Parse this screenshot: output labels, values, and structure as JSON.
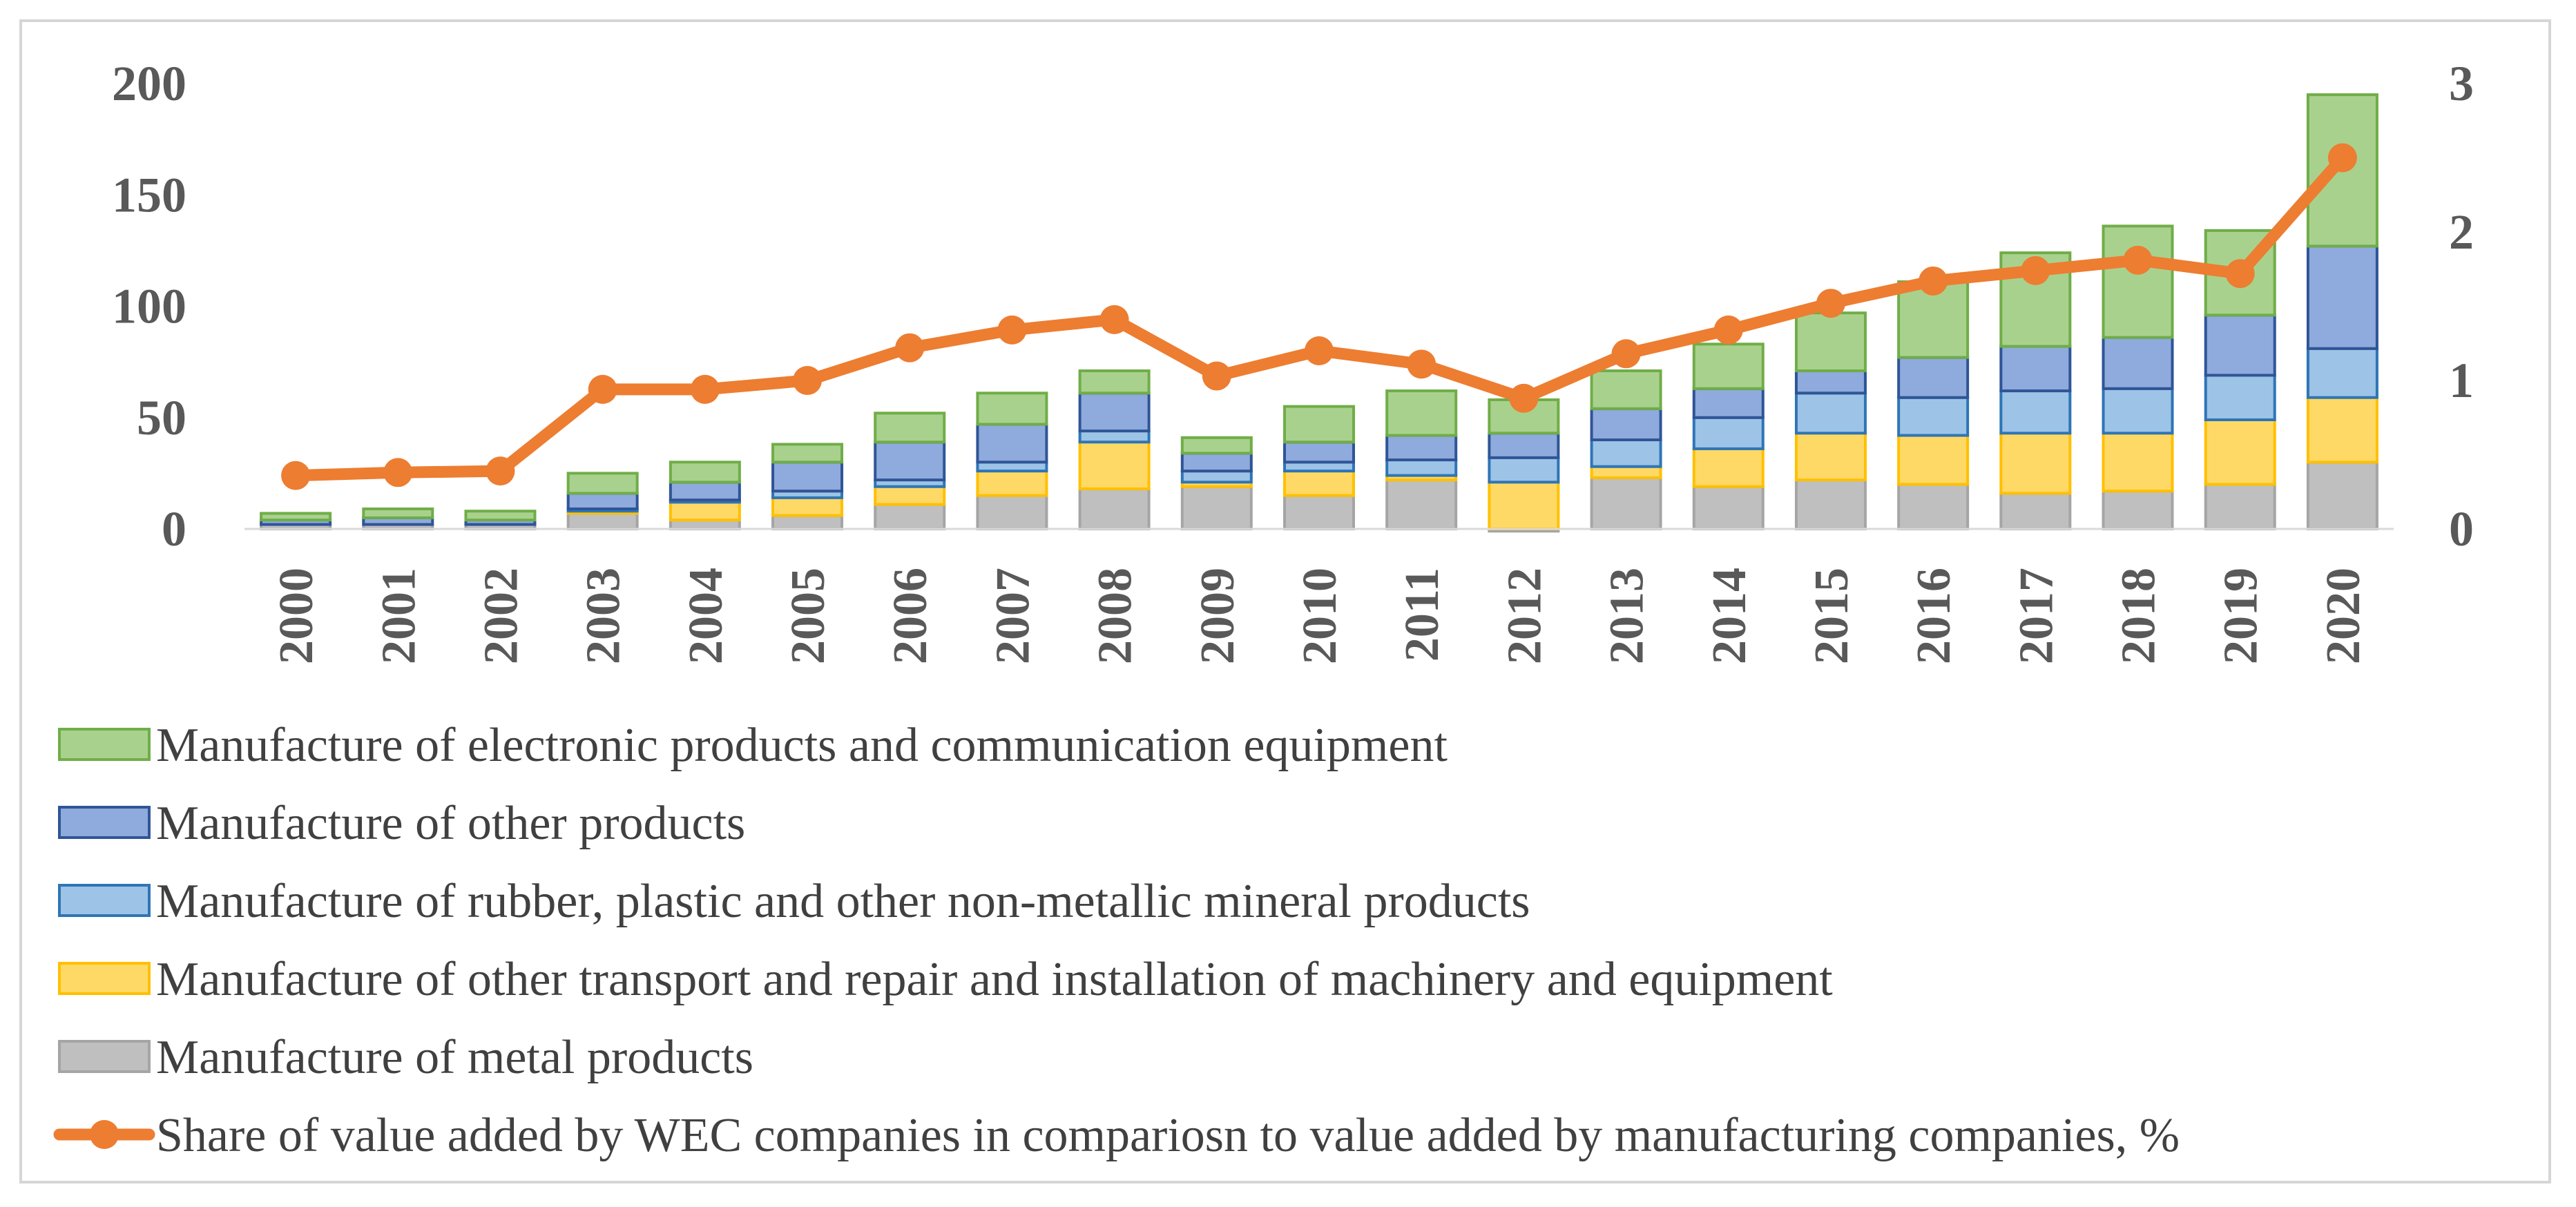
{
  "chart_data": {
    "type": "bar",
    "stacked": true,
    "categories": [
      "2000",
      "2001",
      "2002",
      "2003",
      "2004",
      "2005",
      "2006",
      "2007",
      "2008",
      "2009",
      "2010",
      "2011",
      "2012",
      "2013",
      "2014",
      "2015",
      "2016",
      "2017",
      "2018",
      "2019",
      "2020"
    ],
    "series": [
      {
        "name": "Manufacture of metal products",
        "color": "#bfbfbf",
        "edge": "#a5a5a5",
        "values": [
          2,
          2,
          2,
          7,
          4,
          6,
          11,
          15,
          18,
          19,
          15,
          22,
          -1,
          23,
          19,
          22,
          20,
          16,
          17,
          20,
          30
        ]
      },
      {
        "name": "Manufacture of other transport  and repair and installation of machinery and equipment",
        "color": "#ffd966",
        "edge": "#ffc000",
        "values": [
          0,
          0,
          0,
          1,
          8,
          8,
          8,
          11,
          21,
          2,
          11,
          2,
          21,
          5,
          17,
          21,
          22,
          27,
          26,
          29,
          29
        ]
      },
      {
        "name": "Manufacture of rubber, plastic and other non-metallic mineral products",
        "color": "#9dc3e6",
        "edge": "#2e75b6",
        "values": [
          0,
          0,
          0,
          1,
          1,
          3,
          3,
          4,
          5,
          5,
          4,
          7,
          11,
          12,
          14,
          18,
          17,
          19,
          20,
          20,
          22
        ]
      },
      {
        "name": "Manufacture of other products",
        "color": "#8faadc",
        "edge": "#2f5597",
        "values": [
          2,
          3,
          2,
          7,
          8,
          13,
          17,
          17,
          17,
          8,
          9,
          11,
          11,
          14,
          13,
          10,
          18,
          20,
          23,
          27,
          46
        ]
      },
      {
        "name": "Manufacture of electronic products and communication equipment",
        "color": "#a9d18e",
        "edge": "#70ad47",
        "values": [
          3,
          4,
          4,
          9,
          9,
          8,
          13,
          14,
          10,
          7,
          16,
          20,
          15,
          17,
          20,
          26,
          34,
          42,
          50,
          38,
          68
        ]
      }
    ],
    "line": {
      "name": "Share of value added by WEC companies in compariosn to value added by manufacturing companies, %",
      "axis": "right",
      "color": "#ed7d31",
      "values": [
        0.36,
        0.38,
        0.39,
        0.94,
        0.94,
        1.0,
        1.22,
        1.34,
        1.41,
        1.03,
        1.2,
        1.11,
        0.88,
        1.18,
        1.34,
        1.52,
        1.67,
        1.74,
        1.81,
        1.72,
        2.5
      ]
    },
    "ylim": [
      0,
      200
    ],
    "y_ticks": [
      "0",
      "50",
      "100",
      "150",
      "200"
    ],
    "y2lim": [
      0,
      3
    ],
    "y2_ticks": [
      "0",
      "1",
      "2",
      "3"
    ],
    "legend_order": [
      "Manufacture of electronic products and communication equipment",
      "Manufacture of other products",
      "Manufacture of rubber, plastic and other non-metallic mineral products",
      "Manufacture of other transport  and repair and installation of machinery and equipment",
      "Manufacture of metal products",
      "Share of value added by WEC companies in compariosn to value added by manufacturing companies, %"
    ],
    "legend_position": "bottom",
    "grid": false
  }
}
